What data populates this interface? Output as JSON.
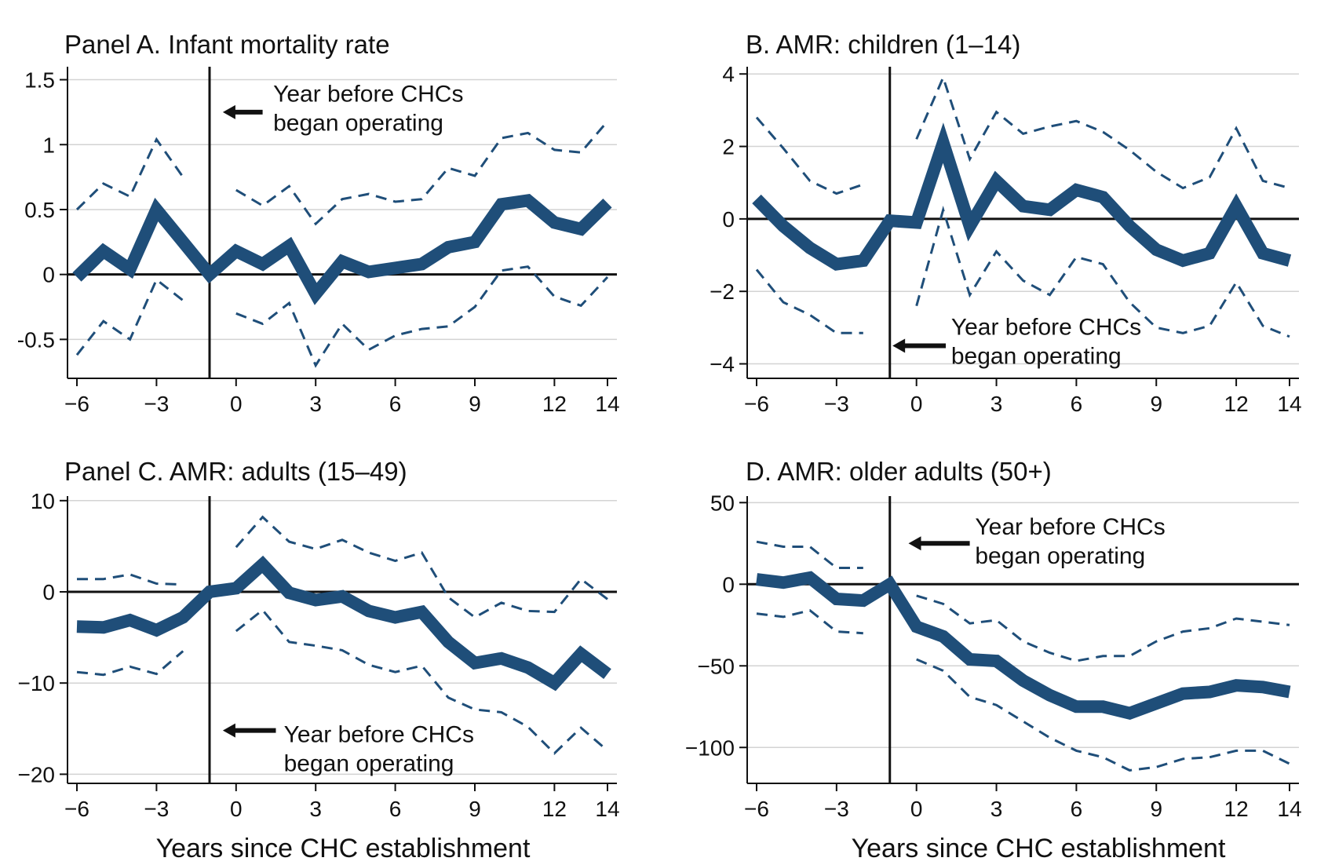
{
  "colors": {
    "series": "#1f4e79",
    "grid": "#d3d3d3",
    "axis": "#111111",
    "text": "#111111"
  },
  "x_axis_title": "Years since CHC establishment",
  "chart_data": [
    {
      "type": "line",
      "title": "Panel A. Infant mortality rate",
      "xlabel": "",
      "ylabel": "",
      "xlim": [
        -6,
        14
      ],
      "ylim": [
        -0.8,
        1.6
      ],
      "xticks": [
        -6,
        -3,
        0,
        3,
        6,
        9,
        12,
        14
      ],
      "xtick_labels": [
        "−6",
        "−3",
        "0",
        "3",
        "6",
        "9",
        "12",
        "14"
      ],
      "yticks": [
        -0.5,
        0,
        0.5,
        1,
        1.5
      ],
      "ytick_labels": [
        "-0.5",
        "0",
        "0.5",
        "1",
        "1.5"
      ],
      "grid": true,
      "event_line_x": -1,
      "annotation": {
        "lines": [
          "Year before CHCs",
          "began operating"
        ],
        "text_x": 1.4,
        "text_y": 1.33,
        "arrow_from_x": 1.0,
        "arrow_to_x": -0.5,
        "arrow_y": 1.25
      },
      "x": [
        -6,
        -5,
        -4,
        -3,
        -2,
        -1,
        0,
        1,
        2,
        3,
        4,
        5,
        6,
        7,
        8,
        9,
        10,
        11,
        12,
        13,
        14
      ],
      "series": [
        {
          "role": "estimate",
          "values": [
            -0.02,
            0.18,
            0.04,
            0.5,
            0.25,
            0.0,
            0.18,
            0.08,
            0.22,
            -0.15,
            0.1,
            0.02,
            0.05,
            0.08,
            0.21,
            0.25,
            0.54,
            0.57,
            0.4,
            0.35,
            0.55
          ]
        },
        {
          "role": "ci_upper",
          "values": [
            0.5,
            0.7,
            0.6,
            1.04,
            0.75,
            null,
            0.65,
            0.53,
            0.68,
            0.39,
            0.58,
            0.62,
            0.56,
            0.58,
            0.82,
            0.76,
            1.05,
            1.09,
            0.96,
            0.94,
            1.18
          ]
        },
        {
          "role": "ci_lower",
          "values": [
            -0.62,
            -0.36,
            -0.5,
            -0.04,
            -0.2,
            null,
            -0.3,
            -0.38,
            -0.22,
            -0.7,
            -0.38,
            -0.58,
            -0.47,
            -0.42,
            -0.4,
            -0.25,
            0.03,
            0.06,
            -0.17,
            -0.24,
            -0.02
          ]
        }
      ]
    },
    {
      "type": "line",
      "title": "B. AMR: children (1–14)",
      "xlabel": "",
      "ylabel": "",
      "xlim": [
        -6,
        14
      ],
      "ylim": [
        -4.4,
        4.2
      ],
      "xticks": [
        -6,
        -3,
        0,
        3,
        6,
        9,
        12,
        14
      ],
      "xtick_labels": [
        "−6",
        "−3",
        "0",
        "3",
        "6",
        "9",
        "12",
        "14"
      ],
      "yticks": [
        -4,
        -2,
        0,
        2,
        4
      ],
      "ytick_labels": [
        "−4",
        "−2",
        "0",
        "2",
        "4"
      ],
      "grid": true,
      "event_line_x": -1,
      "annotation": {
        "lines": [
          "Year before CHCs",
          "began operating"
        ],
        "text_x": 1.3,
        "text_y": -3.2,
        "arrow_from_x": 1.1,
        "arrow_to_x": -0.9,
        "arrow_y": -3.5
      },
      "x": [
        -6,
        -5,
        -4,
        -3,
        -2,
        -1,
        0,
        1,
        2,
        3,
        4,
        5,
        6,
        7,
        8,
        9,
        10,
        11,
        12,
        13,
        14
      ],
      "series": [
        {
          "role": "estimate",
          "values": [
            0.55,
            -0.2,
            -0.8,
            -1.25,
            -1.15,
            -0.05,
            -0.1,
            2.1,
            -0.2,
            1.05,
            0.35,
            0.25,
            0.8,
            0.6,
            -0.2,
            -0.85,
            -1.15,
            -0.95,
            0.35,
            -0.95,
            -1.15
          ]
        },
        {
          "role": "ci_upper",
          "values": [
            2.8,
            1.95,
            1.05,
            0.7,
            0.95,
            null,
            2.2,
            3.9,
            1.65,
            2.95,
            2.35,
            2.55,
            2.7,
            2.4,
            1.9,
            1.3,
            0.85,
            1.15,
            2.5,
            1.05,
            0.85
          ]
        },
        {
          "role": "ci_lower",
          "values": [
            -1.4,
            -2.3,
            -2.65,
            -3.15,
            -3.15,
            null,
            -2.4,
            0.25,
            -2.1,
            -0.9,
            -1.7,
            -2.1,
            -1.05,
            -1.25,
            -2.3,
            -3.0,
            -3.15,
            -2.95,
            -1.75,
            -2.95,
            -3.25
          ]
        }
      ]
    },
    {
      "type": "line",
      "title": "Panel C. AMR: adults (15–49)",
      "xlabel": "",
      "ylabel": "",
      "xlim": [
        -6,
        14
      ],
      "ylim": [
        -21,
        10.5
      ],
      "xticks": [
        -6,
        -3,
        0,
        3,
        6,
        9,
        12,
        14
      ],
      "xtick_labels": [
        "−6",
        "−3",
        "0",
        "3",
        "6",
        "9",
        "12",
        "14"
      ],
      "yticks": [
        -20,
        -10,
        0,
        10
      ],
      "ytick_labels": [
        "−20",
        "−10",
        "0",
        "10"
      ],
      "grid": true,
      "event_line_x": -1,
      "annotation": {
        "lines": [
          "Year before CHCs",
          "began operating"
        ],
        "text_x": 1.8,
        "text_y": -16.5,
        "arrow_from_x": 1.5,
        "arrow_to_x": -0.5,
        "arrow_y": -15.2
      },
      "x": [
        -6,
        -5,
        -4,
        -3,
        -2,
        -1,
        0,
        1,
        2,
        3,
        4,
        5,
        6,
        7,
        8,
        9,
        10,
        11,
        12,
        13,
        14
      ],
      "series": [
        {
          "role": "estimate",
          "values": [
            -3.8,
            -3.9,
            -3.1,
            -4.2,
            -2.8,
            0.0,
            0.4,
            3.0,
            -0.1,
            -0.9,
            -0.5,
            -2.1,
            -2.8,
            -2.2,
            -5.5,
            -7.8,
            -7.3,
            -8.3,
            -10.0,
            -6.8,
            -9.0
          ]
        },
        {
          "role": "ci_upper",
          "values": [
            1.4,
            1.4,
            1.9,
            0.9,
            0.8,
            null,
            4.9,
            8.2,
            5.5,
            4.7,
            5.7,
            4.3,
            3.4,
            4.3,
            -0.6,
            -2.8,
            -1.2,
            -2.1,
            -2.2,
            1.4,
            -0.8
          ]
        },
        {
          "role": "ci_lower",
          "values": [
            -8.8,
            -9.1,
            -8.2,
            -9.0,
            -6.5,
            null,
            -4.3,
            -2.0,
            -5.5,
            -5.9,
            -6.4,
            -8.0,
            -8.8,
            -8.1,
            -11.6,
            -12.9,
            -13.2,
            -14.8,
            -17.7,
            -14.9,
            -17.4
          ]
        }
      ]
    },
    {
      "type": "line",
      "title": "D. AMR: older adults (50+)",
      "xlabel": "",
      "ylabel": "",
      "xlim": [
        -6,
        14
      ],
      "ylim": [
        -122,
        54
      ],
      "xticks": [
        -6,
        -3,
        0,
        3,
        6,
        9,
        12,
        14
      ],
      "xtick_labels": [
        "−6",
        "−3",
        "0",
        "3",
        "6",
        "9",
        "12",
        "14"
      ],
      "yticks": [
        -100,
        -50,
        0,
        50
      ],
      "ytick_labels": [
        "−100",
        "−50",
        "0",
        "50"
      ],
      "grid": true,
      "event_line_x": -1,
      "annotation": {
        "lines": [
          "Year before CHCs",
          "began operating"
        ],
        "text_x": 2.2,
        "text_y": 30.5,
        "arrow_from_x": 2.0,
        "arrow_to_x": -0.3,
        "arrow_y": 25.0
      },
      "x": [
        -6,
        -5,
        -4,
        -3,
        -2,
        -1,
        0,
        1,
        2,
        3,
        4,
        5,
        6,
        7,
        8,
        9,
        10,
        11,
        12,
        13,
        14
      ],
      "series": [
        {
          "role": "estimate",
          "values": [
            3,
            1,
            4,
            -9,
            -10,
            0,
            -26,
            -32,
            -46,
            -47,
            -59,
            -68,
            -75,
            -75,
            -79,
            -73,
            -67,
            -66,
            -62,
            -63,
            -66
          ]
        },
        {
          "role": "ci_upper",
          "values": [
            26,
            23,
            23,
            10,
            10,
            null,
            -7,
            -12,
            -24,
            -22,
            -35,
            -42,
            -47,
            -44,
            -44,
            -35,
            -29,
            -27,
            -21,
            -23,
            -25
          ]
        },
        {
          "role": "ci_lower",
          "values": [
            -18,
            -20,
            -16,
            -29,
            -30,
            null,
            -46,
            -53,
            -69,
            -74,
            -84,
            -94,
            -102,
            -106,
            -114,
            -112,
            -107,
            -106,
            -102,
            -102,
            -110
          ]
        }
      ]
    }
  ]
}
